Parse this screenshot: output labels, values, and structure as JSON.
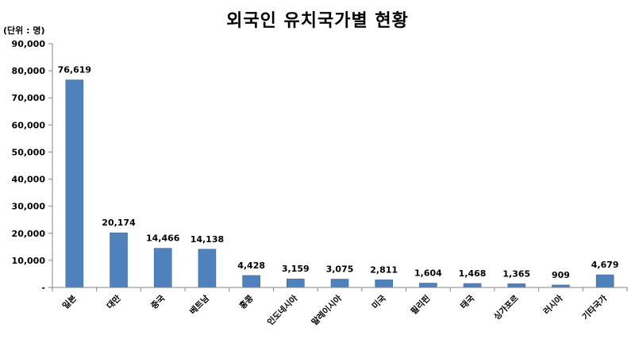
{
  "chart_data": {
    "type": "bar",
    "title": "외국인 유치국가별 현황",
    "unit_label": "(단위 : 명)",
    "xlabel": "",
    "ylabel": "",
    "ylim": [
      0,
      90000
    ],
    "yticks": [
      "-",
      "10,000",
      "20,000",
      "30,000",
      "40,000",
      "50,000",
      "60,000",
      "70,000",
      "80,000",
      "90,000"
    ],
    "categories": [
      "일본",
      "대만",
      "중국",
      "베트남",
      "홍콩",
      "인도네시아",
      "말레이시아",
      "미국",
      "필리핀",
      "태국",
      "싱가포르",
      "러시아",
      "기타국가"
    ],
    "values": [
      76619,
      20174,
      14466,
      14138,
      4428,
      3159,
      3075,
      2811,
      1604,
      1468,
      1365,
      909,
      4679
    ],
    "data_labels": [
      "76,619",
      "20,174",
      "14,466",
      "14,138",
      "4,428",
      "3,159",
      "3,075",
      "2,811",
      "1,604",
      "1,468",
      "1,365",
      "909",
      "4,679"
    ],
    "grid": false,
    "legend": "none",
    "bar_color": "#4f81bd",
    "bar_edge_color": "#3a6a9e",
    "axis_color": "#868686"
  }
}
